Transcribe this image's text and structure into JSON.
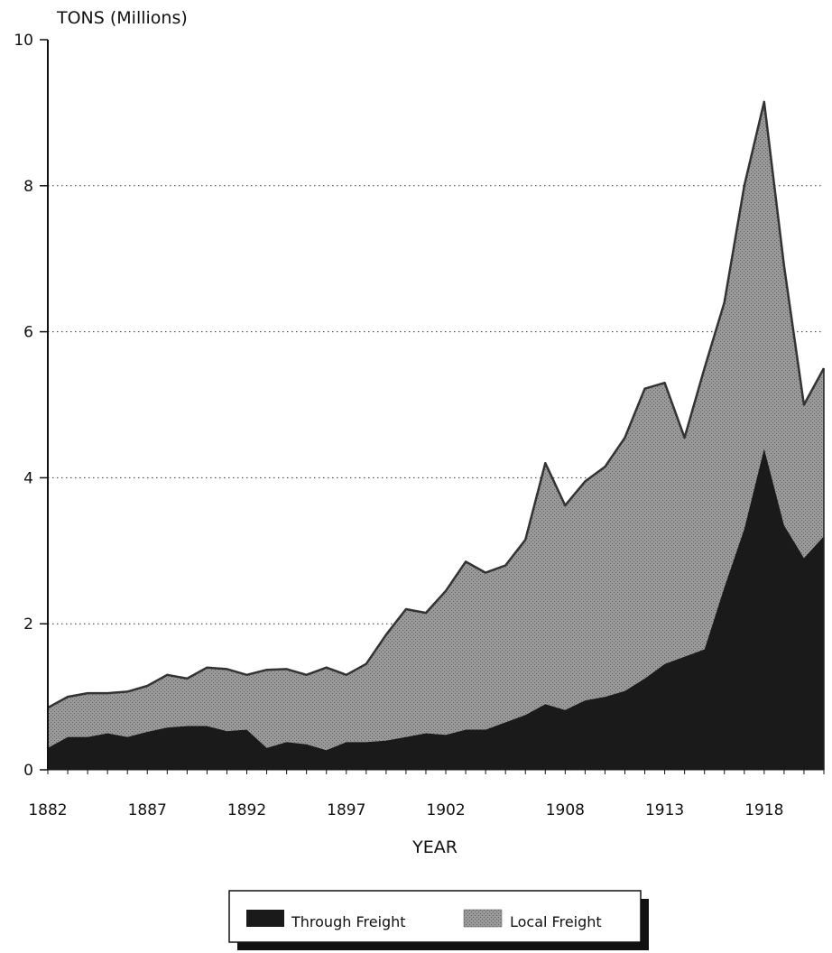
{
  "chart_data": {
    "type": "area",
    "stacked": true,
    "ylabel": "TONS (Millions)",
    "xlabel": "YEAR",
    "ylim": [
      0,
      10
    ],
    "yticks": [
      0,
      2,
      4,
      6,
      8,
      10
    ],
    "xlim": [
      1882,
      1921
    ],
    "xticks": [
      1882,
      1887,
      1892,
      1897,
      1902,
      1908,
      1913,
      1918
    ],
    "grid": "horizontal dotted",
    "legend_position": "bottom",
    "x": [
      1882,
      1883,
      1884,
      1885,
      1886,
      1887,
      1888,
      1889,
      1890,
      1891,
      1892,
      1893,
      1894,
      1895,
      1896,
      1897,
      1898,
      1899,
      1900,
      1901,
      1902,
      1903,
      1904,
      1905,
      1906,
      1907,
      1908,
      1909,
      1910,
      1911,
      1912,
      1913,
      1914,
      1915,
      1916,
      1917,
      1918,
      1919,
      1920,
      1921
    ],
    "series": [
      {
        "name": "Through Freight",
        "color": "#1a1a1a",
        "values": [
          0.3,
          0.45,
          0.45,
          0.5,
          0.45,
          0.52,
          0.58,
          0.6,
          0.6,
          0.53,
          0.55,
          0.3,
          0.38,
          0.35,
          0.27,
          0.38,
          0.38,
          0.4,
          0.45,
          0.5,
          0.48,
          0.55,
          0.55,
          0.65,
          0.75,
          0.9,
          0.82,
          0.95,
          1.0,
          1.08,
          1.25,
          1.45,
          1.55,
          1.65,
          2.5,
          3.3,
          4.4,
          3.35,
          2.9,
          3.2
        ]
      },
      {
        "name": "Local Freight",
        "color": "#8a8a8a",
        "values": [
          0.55,
          0.55,
          0.6,
          0.55,
          0.62,
          0.63,
          0.72,
          0.65,
          0.8,
          0.85,
          0.75,
          1.07,
          1.0,
          0.95,
          1.13,
          0.92,
          1.07,
          1.45,
          1.75,
          1.65,
          1.97,
          2.3,
          2.15,
          2.15,
          2.4,
          3.3,
          2.8,
          3.0,
          3.15,
          3.47,
          3.97,
          3.85,
          3.0,
          3.85,
          3.9,
          4.7,
          4.75,
          3.55,
          2.1,
          2.3
        ]
      }
    ]
  }
}
